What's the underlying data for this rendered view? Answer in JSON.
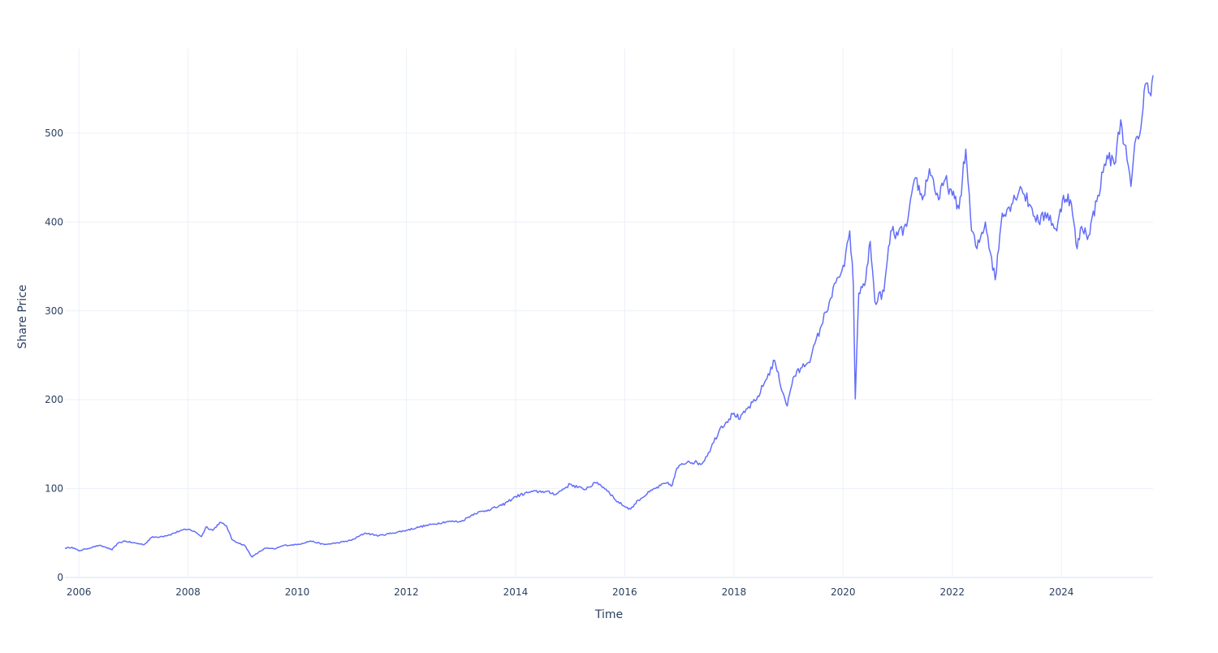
{
  "chart_data": {
    "type": "line",
    "title": "",
    "xlabel": "Time",
    "ylabel": "Share Price",
    "xlim": [
      "2005-09-30",
      "2025-09-05"
    ],
    "ylim": [
      0,
      595
    ],
    "x_ticks": [
      "2006",
      "2008",
      "2010",
      "2012",
      "2014",
      "2016",
      "2018",
      "2020",
      "2022",
      "2024"
    ],
    "y_ticks": [
      0,
      100,
      200,
      300,
      400,
      500
    ],
    "grid": true,
    "legend": "none",
    "series": [
      {
        "color": "#636efa",
        "points": [
          [
            "2005-09-30",
            33
          ],
          [
            "2005-11-15",
            34
          ],
          [
            "2006-01-01",
            30
          ],
          [
            "2006-02-15",
            32
          ],
          [
            "2006-04-01",
            34
          ],
          [
            "2006-05-15",
            36
          ],
          [
            "2006-07-01",
            34
          ],
          [
            "2006-08-10",
            31
          ],
          [
            "2006-09-15",
            38
          ],
          [
            "2006-11-01",
            41
          ],
          [
            "2007-01-01",
            39
          ],
          [
            "2007-03-15",
            37
          ],
          [
            "2007-05-01",
            45
          ],
          [
            "2007-07-01",
            46
          ],
          [
            "2007-09-01",
            48
          ],
          [
            "2007-11-15",
            53
          ],
          [
            "2008-01-15",
            54
          ],
          [
            "2008-03-01",
            50
          ],
          [
            "2008-04-01",
            46
          ],
          [
            "2008-05-01",
            57
          ],
          [
            "2008-06-15",
            53
          ],
          [
            "2008-08-01",
            62
          ],
          [
            "2008-09-15",
            58
          ],
          [
            "2008-10-20",
            43
          ],
          [
            "2008-12-01",
            39
          ],
          [
            "2009-01-15",
            36
          ],
          [
            "2009-03-05",
            23
          ],
          [
            "2009-04-15",
            28
          ],
          [
            "2009-06-01",
            33
          ],
          [
            "2009-08-01",
            32
          ],
          [
            "2009-10-01",
            36
          ],
          [
            "2010-01-01",
            37
          ],
          [
            "2010-04-01",
            41
          ],
          [
            "2010-07-01",
            37
          ],
          [
            "2010-10-01",
            39
          ],
          [
            "2011-01-01",
            42
          ],
          [
            "2011-04-01",
            50
          ],
          [
            "2011-07-01",
            47
          ],
          [
            "2011-10-01",
            50
          ],
          [
            "2012-01-01",
            53
          ],
          [
            "2012-04-01",
            57
          ],
          [
            "2012-07-01",
            60
          ],
          [
            "2012-10-01",
            63
          ],
          [
            "2013-01-01",
            63
          ],
          [
            "2013-04-01",
            72
          ],
          [
            "2013-07-01",
            76
          ],
          [
            "2013-10-01",
            81
          ],
          [
            "2014-01-01",
            91
          ],
          [
            "2014-04-01",
            96
          ],
          [
            "2014-07-01",
            97
          ],
          [
            "2014-10-01",
            94
          ],
          [
            "2015-01-01",
            105
          ],
          [
            "2015-04-01",
            99
          ],
          [
            "2015-07-01",
            107
          ],
          [
            "2015-09-15",
            97
          ],
          [
            "2015-11-01",
            87
          ],
          [
            "2016-01-01",
            80
          ],
          [
            "2016-02-10",
            77
          ],
          [
            "2016-04-01",
            87
          ],
          [
            "2016-07-01",
            98
          ],
          [
            "2016-10-01",
            106
          ],
          [
            "2016-11-15",
            104
          ],
          [
            "2016-12-15",
            123
          ],
          [
            "2017-03-01",
            131
          ],
          [
            "2017-06-01",
            128
          ],
          [
            "2017-08-01",
            146
          ],
          [
            "2017-10-01",
            168
          ],
          [
            "2018-01-01",
            185
          ],
          [
            "2018-02-10",
            178
          ],
          [
            "2018-04-01",
            190
          ],
          [
            "2018-06-01",
            200
          ],
          [
            "2018-08-01",
            222
          ],
          [
            "2018-10-01",
            244
          ],
          [
            "2018-11-01",
            222
          ],
          [
            "2018-12-24",
            193
          ],
          [
            "2019-02-01",
            225
          ],
          [
            "2019-04-01",
            236
          ],
          [
            "2019-06-01",
            248
          ],
          [
            "2019-08-01",
            280
          ],
          [
            "2019-10-01",
            310
          ],
          [
            "2019-12-01",
            338
          ],
          [
            "2020-01-10",
            350
          ],
          [
            "2020-02-15",
            390
          ],
          [
            "2020-03-10",
            330
          ],
          [
            "2020-03-23",
            201
          ],
          [
            "2020-04-15",
            320
          ],
          [
            "2020-06-01",
            335
          ],
          [
            "2020-07-01",
            378
          ],
          [
            "2020-08-01",
            310
          ],
          [
            "2020-10-01",
            322
          ],
          [
            "2020-11-15",
            390
          ],
          [
            "2021-01-01",
            385
          ],
          [
            "2021-03-01",
            395
          ],
          [
            "2021-05-01",
            450
          ],
          [
            "2021-06-15",
            425
          ],
          [
            "2021-08-01",
            460
          ],
          [
            "2021-10-01",
            425
          ],
          [
            "2021-11-15",
            448
          ],
          [
            "2022-01-01",
            430
          ],
          [
            "2022-02-15",
            415
          ],
          [
            "2022-04-01",
            482
          ],
          [
            "2022-05-10",
            390
          ],
          [
            "2022-06-15",
            370
          ],
          [
            "2022-08-10",
            400
          ],
          [
            "2022-10-15",
            335
          ],
          [
            "2022-12-01",
            410
          ],
          [
            "2023-02-01",
            420
          ],
          [
            "2023-04-01",
            440
          ],
          [
            "2023-06-01",
            420
          ],
          [
            "2023-08-01",
            400
          ],
          [
            "2023-10-01",
            410
          ],
          [
            "2023-12-01",
            390
          ],
          [
            "2024-01-15",
            430
          ],
          [
            "2024-03-01",
            425
          ],
          [
            "2024-04-15",
            370
          ],
          [
            "2024-05-15",
            395
          ],
          [
            "2024-07-01",
            385
          ],
          [
            "2024-09-01",
            430
          ],
          [
            "2024-11-01",
            475
          ],
          [
            "2024-12-20",
            465
          ],
          [
            "2025-02-01",
            515
          ],
          [
            "2025-03-15",
            470
          ],
          [
            "2025-04-10",
            440
          ],
          [
            "2025-05-15",
            495
          ],
          [
            "2025-06-15",
            505
          ],
          [
            "2025-07-15",
            555
          ],
          [
            "2025-08-15",
            545
          ],
          [
            "2025-09-05",
            565
          ]
        ]
      }
    ]
  }
}
